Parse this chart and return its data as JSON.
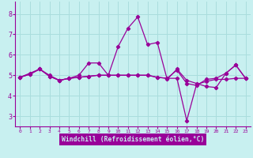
{
  "background_color": "#c8f0f0",
  "grid_color": "#aadddd",
  "line_color": "#990099",
  "xlabel": "Windchill (Refroidissement éolien,°C)",
  "xlabel_bg": "#990099",
  "xlabel_fg": "#c8f0f0",
  "xlim": [
    -0.5,
    23.5
  ],
  "ylim": [
    2.5,
    8.6
  ],
  "yticks": [
    3,
    4,
    5,
    6,
    7,
    8
  ],
  "xticks": [
    0,
    1,
    2,
    3,
    4,
    5,
    6,
    7,
    8,
    9,
    10,
    11,
    12,
    13,
    14,
    15,
    16,
    17,
    18,
    19,
    20,
    21,
    22,
    23
  ],
  "series1": [
    4.9,
    5.1,
    5.3,
    5.0,
    4.75,
    4.85,
    5.0,
    5.6,
    5.6,
    5.0,
    6.4,
    7.3,
    7.85,
    6.5,
    6.6,
    4.8,
    5.3,
    4.75,
    4.6,
    4.45,
    4.4,
    5.1,
    5.5,
    4.85
  ],
  "series2": [
    4.9,
    5.05,
    5.3,
    4.95,
    4.75,
    4.85,
    4.9,
    4.95,
    5.0,
    5.0,
    5.0,
    5.0,
    5.0,
    5.0,
    4.9,
    4.85,
    4.85,
    2.78,
    4.55,
    4.7,
    4.8,
    4.8,
    4.85,
    4.85
  ],
  "series3": [
    4.9,
    5.05,
    5.3,
    4.95,
    4.75,
    4.85,
    4.9,
    4.95,
    5.0,
    5.0,
    5.0,
    5.0,
    5.0,
    5.0,
    4.9,
    4.85,
    5.25,
    4.6,
    4.5,
    4.8,
    4.85,
    5.1,
    5.5,
    4.85
  ]
}
